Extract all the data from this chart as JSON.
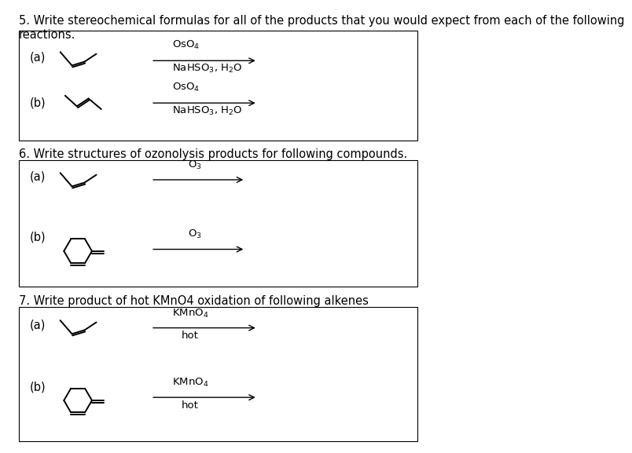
{
  "bg_color": "#ffffff",
  "text_color": "#000000",
  "section5_title": "5. Write stereochemical formulas for all of the products that you would expect from each of the following\nreactions.",
  "section6_title": "6. Write structures of ozonolysis products for following compounds.",
  "section7_title": "7. Write product of hot KMnO4 oxidation of following alkenes",
  "font_size_title": 10.5,
  "font_size_label": 10.5,
  "font_size_reagent": 9.5,
  "font_size_reagent_sub": 9.0
}
